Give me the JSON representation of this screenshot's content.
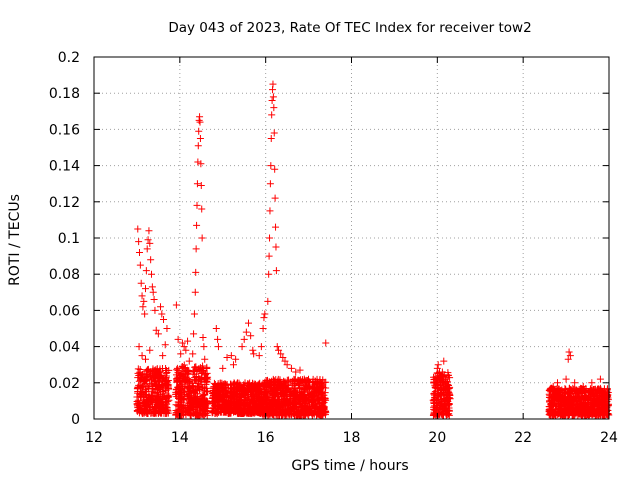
{
  "chart_data": {
    "type": "scatter",
    "title": "Day 043 of 2023, Rate Of TEC Index for receiver tow2",
    "xlabel": "GPS time / hours",
    "ylabel": "ROTI / TECUs",
    "xlim": [
      12,
      24
    ],
    "ylim": [
      0,
      0.2
    ],
    "xticks": [
      12,
      14,
      16,
      18,
      20,
      22,
      24
    ],
    "xtick_labels": [
      "12",
      "14",
      "16",
      "18",
      "20",
      "22",
      "24"
    ],
    "yticks": [
      0,
      0.02,
      0.04,
      0.06,
      0.08,
      0.1,
      0.12,
      0.14,
      0.16,
      0.18,
      0.2
    ],
    "ytick_labels": [
      "0",
      "0.02",
      "0.04",
      "0.06",
      "0.08",
      "0.1",
      "0.12",
      "0.14",
      "0.16",
      "0.18",
      "0.2"
    ],
    "grid": true,
    "marker": "+",
    "color": "#ff0000",
    "series": [
      {
        "name": "ROTI",
        "points": [
          [
            13.02,
            0.105
          ],
          [
            13.04,
            0.098
          ],
          [
            13.06,
            0.092
          ],
          [
            13.08,
            0.085
          ],
          [
            13.1,
            0.075
          ],
          [
            13.12,
            0.068
          ],
          [
            13.14,
            0.062
          ],
          [
            13.16,
            0.065
          ],
          [
            13.18,
            0.058
          ],
          [
            13.2,
            0.072
          ],
          [
            13.22,
            0.082
          ],
          [
            13.24,
            0.094
          ],
          [
            13.26,
            0.099
          ],
          [
            13.28,
            0.104
          ],
          [
            13.3,
            0.097
          ],
          [
            13.32,
            0.088
          ],
          [
            13.34,
            0.08
          ],
          [
            13.36,
            0.073
          ],
          [
            13.38,
            0.07
          ],
          [
            13.4,
            0.066
          ],
          [
            13.42,
            0.06
          ],
          [
            13.45,
            0.049
          ],
          [
            13.5,
            0.047
          ],
          [
            13.55,
            0.062
          ],
          [
            13.58,
            0.058
          ],
          [
            13.62,
            0.055
          ],
          [
            13.66,
            0.041
          ],
          [
            13.7,
            0.05
          ],
          [
            13.05,
            0.04
          ],
          [
            13.12,
            0.035
          ],
          [
            13.2,
            0.033
          ],
          [
            13.3,
            0.038
          ],
          [
            13.6,
            0.035
          ],
          [
            13.92,
            0.063
          ],
          [
            13.96,
            0.044
          ],
          [
            14.02,
            0.036
          ],
          [
            14.06,
            0.042
          ],
          [
            14.1,
            0.04
          ],
          [
            14.14,
            0.038
          ],
          [
            14.18,
            0.043
          ],
          [
            14.22,
            0.032
          ],
          [
            14.3,
            0.036
          ],
          [
            14.32,
            0.047
          ],
          [
            14.34,
            0.058
          ],
          [
            14.36,
            0.07
          ],
          [
            14.37,
            0.081
          ],
          [
            14.38,
            0.094
          ],
          [
            14.39,
            0.107
          ],
          [
            14.4,
            0.118
          ],
          [
            14.41,
            0.13
          ],
          [
            14.42,
            0.142
          ],
          [
            14.43,
            0.151
          ],
          [
            14.44,
            0.159
          ],
          [
            14.45,
            0.165
          ],
          [
            14.46,
            0.167
          ],
          [
            14.47,
            0.164
          ],
          [
            14.48,
            0.155
          ],
          [
            14.49,
            0.141
          ],
          [
            14.5,
            0.129
          ],
          [
            14.51,
            0.116
          ],
          [
            14.52,
            0.1
          ],
          [
            14.54,
            0.045
          ],
          [
            14.56,
            0.04
          ],
          [
            14.58,
            0.033
          ],
          [
            14.85,
            0.05
          ],
          [
            14.88,
            0.044
          ],
          [
            14.9,
            0.04
          ],
          [
            15.0,
            0.028
          ],
          [
            15.1,
            0.034
          ],
          [
            15.2,
            0.035
          ],
          [
            15.25,
            0.03
          ],
          [
            15.3,
            0.033
          ],
          [
            15.45,
            0.04
          ],
          [
            15.5,
            0.044
          ],
          [
            15.55,
            0.048
          ],
          [
            15.6,
            0.053
          ],
          [
            15.65,
            0.046
          ],
          [
            15.7,
            0.038
          ],
          [
            15.72,
            0.036
          ],
          [
            15.85,
            0.035
          ],
          [
            15.9,
            0.04
          ],
          [
            15.94,
            0.05
          ],
          [
            15.96,
            0.056
          ],
          [
            15.98,
            0.058
          ],
          [
            16.05,
            0.065
          ],
          [
            16.07,
            0.08
          ],
          [
            16.08,
            0.09
          ],
          [
            16.09,
            0.1
          ],
          [
            16.1,
            0.115
          ],
          [
            16.11,
            0.13
          ],
          [
            16.12,
            0.14
          ],
          [
            16.13,
            0.155
          ],
          [
            16.14,
            0.168
          ],
          [
            16.15,
            0.176
          ],
          [
            16.16,
            0.182
          ],
          [
            16.17,
            0.185
          ],
          [
            16.18,
            0.178
          ],
          [
            16.19,
            0.172
          ],
          [
            16.2,
            0.158
          ],
          [
            16.21,
            0.138
          ],
          [
            16.22,
            0.122
          ],
          [
            16.23,
            0.106
          ],
          [
            16.24,
            0.095
          ],
          [
            16.25,
            0.082
          ],
          [
            16.27,
            0.04
          ],
          [
            16.3,
            0.038
          ],
          [
            16.35,
            0.036
          ],
          [
            16.4,
            0.034
          ],
          [
            16.45,
            0.032
          ],
          [
            16.5,
            0.03
          ],
          [
            16.6,
            0.028
          ],
          [
            16.7,
            0.026
          ],
          [
            16.8,
            0.027
          ],
          [
            16.9,
            0.022
          ],
          [
            17.0,
            0.018
          ],
          [
            17.1,
            0.02
          ],
          [
            17.2,
            0.016
          ],
          [
            17.32,
            0.014
          ],
          [
            17.4,
            0.042
          ],
          [
            19.95,
            0.022
          ],
          [
            20.0,
            0.028
          ],
          [
            20.02,
            0.03
          ],
          [
            20.05,
            0.026
          ],
          [
            20.1,
            0.024
          ],
          [
            20.15,
            0.032
          ],
          [
            20.2,
            0.018
          ],
          [
            22.7,
            0.018
          ],
          [
            22.8,
            0.02
          ],
          [
            22.9,
            0.016
          ],
          [
            23.0,
            0.022
          ],
          [
            23.05,
            0.033
          ],
          [
            23.07,
            0.037
          ],
          [
            23.1,
            0.035
          ],
          [
            23.2,
            0.02
          ],
          [
            23.4,
            0.018
          ],
          [
            23.6,
            0.02
          ],
          [
            23.8,
            0.022
          ],
          [
            23.95,
            0.015
          ]
        ],
        "dense_bands": [
          {
            "x_start": 13.0,
            "x_end": 13.75,
            "y_min": 0.003,
            "y_max": 0.028
          },
          {
            "x_start": 13.9,
            "x_end": 14.65,
            "y_min": 0.002,
            "y_max": 0.03
          },
          {
            "x_start": 14.75,
            "x_end": 15.9,
            "y_min": 0.003,
            "y_max": 0.02
          },
          {
            "x_start": 15.9,
            "x_end": 17.4,
            "y_min": 0.002,
            "y_max": 0.022
          },
          {
            "x_start": 19.9,
            "x_end": 20.3,
            "y_min": 0.002,
            "y_max": 0.026
          },
          {
            "x_start": 22.6,
            "x_end": 24.0,
            "y_min": 0.002,
            "y_max": 0.017
          }
        ]
      }
    ]
  }
}
